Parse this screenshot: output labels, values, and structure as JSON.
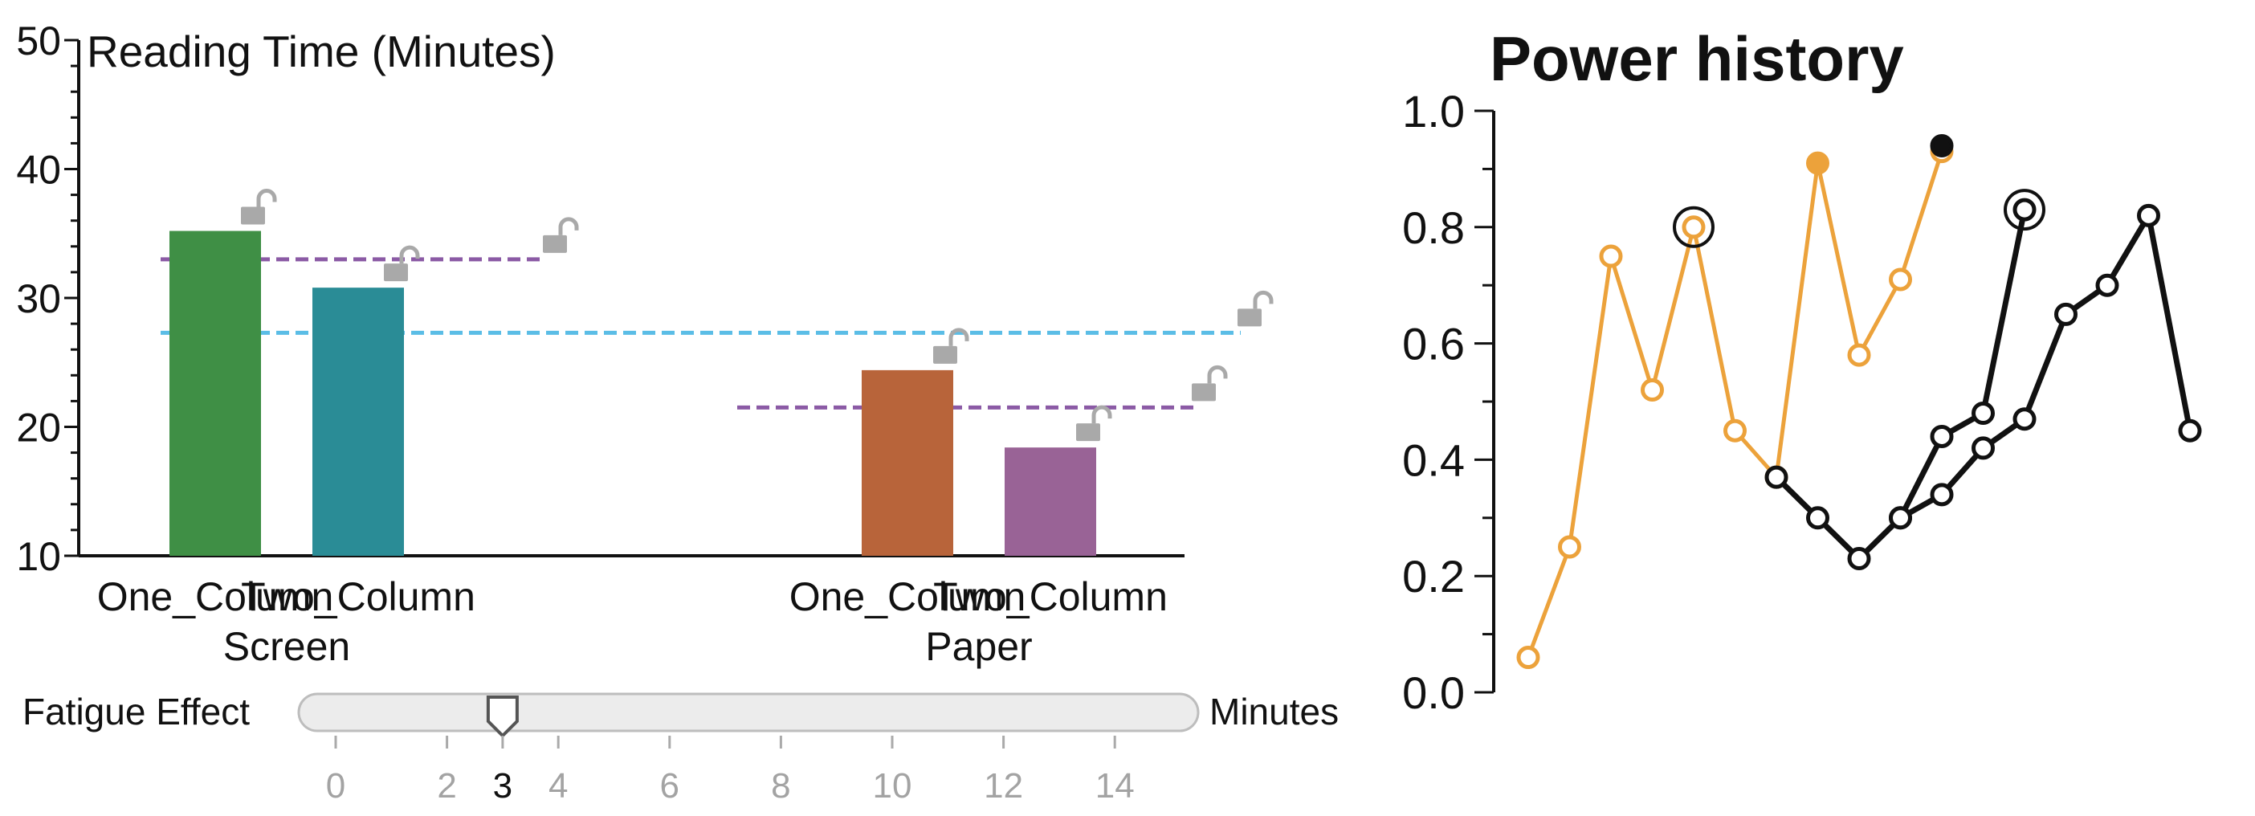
{
  "chart_data": [
    {
      "type": "bar",
      "title": "Reading Time (Minutes)",
      "ylim": [
        10,
        50
      ],
      "yticks": [
        10,
        20,
        30,
        40,
        50
      ],
      "groups": [
        {
          "label": "Screen",
          "categories": [
            "One_Column",
            "Two_Column"
          ]
        },
        {
          "label": "Paper",
          "categories": [
            "One_Column",
            "Two_Column"
          ]
        }
      ],
      "categories": [
        "One_Column",
        "Two_Column",
        "One_Column",
        "Two_Column"
      ],
      "values": [
        35.2,
        30.8,
        24.4,
        18.4
      ],
      "bar_colors": [
        "#3f8f45",
        "#2a8c96",
        "#b8643a",
        "#996396"
      ],
      "reference_lines": [
        {
          "group": "Screen",
          "value": 33.0,
          "color": "#8b5aa5",
          "style": "dashed"
        },
        {
          "group": "Paper",
          "value": 21.5,
          "color": "#8b5aa5",
          "style": "dashed"
        },
        {
          "group": "All",
          "value": 27.3,
          "color": "#5bbde6",
          "style": "dashed"
        }
      ],
      "lock_icons": "unlocked-padlock",
      "grid": false
    },
    {
      "type": "line",
      "title": "Power history",
      "ylim": [
        0,
        1
      ],
      "yticks": [
        "0.0",
        "0.2",
        "0.4",
        "0.6",
        "0.8",
        "1.0"
      ],
      "grid": false,
      "series": [
        {
          "color": "#eca23b",
          "values": [
            0.06,
            0.25,
            0.75,
            0.52,
            0.8,
            0.45,
            0.37,
            0.91,
            0.58,
            0.71,
            0.93
          ],
          "highlight_index": 4,
          "filled_indices": [
            7
          ]
        },
        {
          "color": "#111111",
          "values": [
            0.37,
            0.3,
            0.23,
            0.3,
            0.44,
            0.48,
            0.83
          ],
          "highlight_index": 6,
          "filled_indices": [],
          "start_index": 6
        },
        {
          "color": "#111111",
          "values": [
            0.3,
            0.34,
            0.42,
            0.47,
            0.65,
            0.7,
            0.82,
            0.45
          ],
          "highlight_index": null,
          "filled_indices": [],
          "start_index": 9
        },
        {
          "color": "#111111",
          "values": [
            0.94
          ],
          "filled_indices": [
            0
          ],
          "start_index": 10
        }
      ]
    }
  ],
  "slider": {
    "label": "Fatigue Effect",
    "unit": "Minutes",
    "value": 3,
    "min": 0,
    "max": 16,
    "tick_labels": [
      "0",
      "2",
      "3",
      "4",
      "6",
      "8",
      "10",
      "12",
      "14"
    ],
    "tick_values": [
      0,
      2,
      3,
      4,
      6,
      8,
      10,
      12,
      14
    ]
  }
}
